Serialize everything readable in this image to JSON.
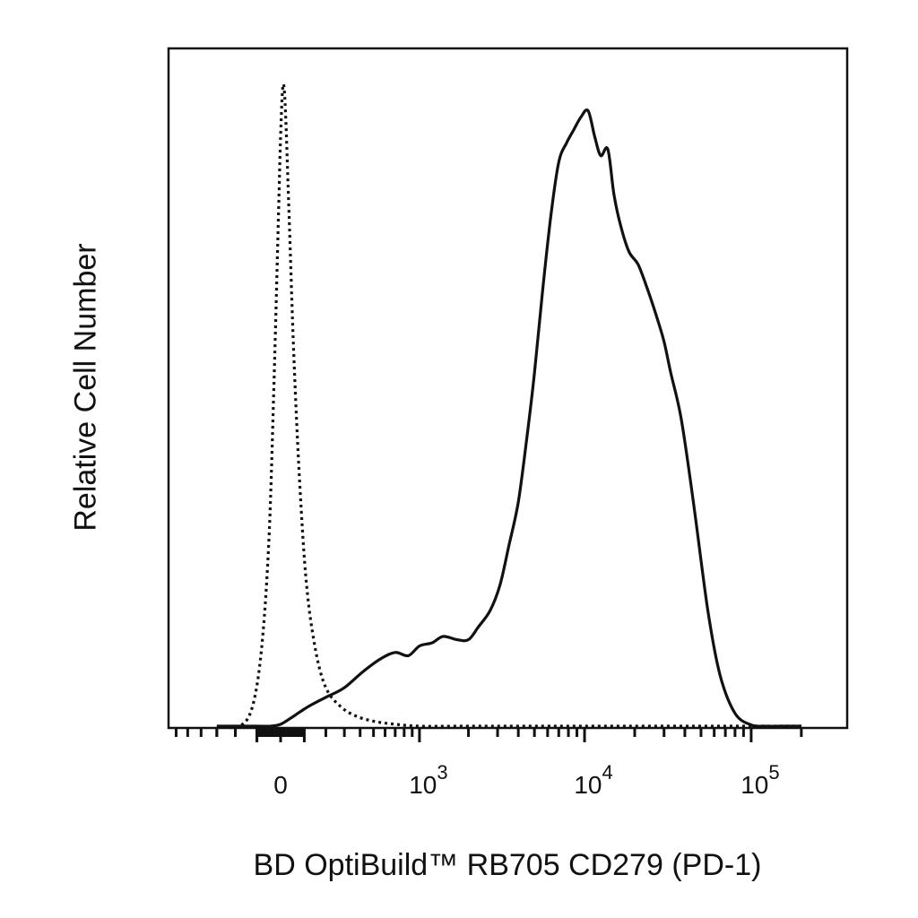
{
  "chart_data": {
    "type": "line",
    "title": "",
    "xlabel": "BD OptiBuild™ RB705 CD279 (PD-1)",
    "ylabel": "Relative Cell Number",
    "x_scale": "biexponential (linear near 0, log above)",
    "xlim": [
      -300,
      200000
    ],
    "ylim": [
      0,
      100
    ],
    "x_tick_labels": [
      {
        "value": 0,
        "base": "0",
        "exp": ""
      },
      {
        "value": 1000,
        "base": "10",
        "exp": "3"
      },
      {
        "value": 10000,
        "base": "10",
        "exp": "4"
      },
      {
        "value": 100000,
        "base": "10",
        "exp": "5"
      }
    ],
    "grid": false,
    "legend": "none",
    "series": [
      {
        "style": "dotted",
        "color": "#111111",
        "x": [
          -300,
          -180,
          -120,
          -80,
          -50,
          -30,
          -10,
          0,
          10,
          20,
          35,
          55,
          80,
          110,
          150,
          200,
          280,
          380,
          520,
          700,
          1000,
          2000,
          10000,
          100000,
          200000
        ],
        "y": [
          0,
          0,
          3,
          12,
          28,
          50,
          78,
          92,
          100,
          96,
          80,
          58,
          38,
          22,
          12,
          6,
          3,
          1.5,
          0.7,
          0.3,
          0,
          0,
          0,
          0,
          0
        ]
      },
      {
        "style": "solid",
        "color": "#111111",
        "x": [
          -300,
          -100,
          -40,
          0,
          40,
          80,
          130,
          200,
          300,
          420,
          560,
          700,
          850,
          1000,
          1200,
          1400,
          1700,
          2000,
          2300,
          2700,
          3100,
          3500,
          4000,
          4500,
          5000,
          5600,
          6300,
          7000,
          7800,
          8600,
          9500,
          10500,
          11500,
          12500,
          13800,
          15000,
          16500,
          18500,
          21000,
          24000,
          27000,
          30000,
          33000,
          38000,
          45000,
          55000,
          65000,
          80000,
          100000,
          120000,
          150000,
          200000
        ],
        "y": [
          0,
          0,
          0,
          0.3,
          1.2,
          2.2,
          3.3,
          4.5,
          6,
          8.5,
          10.5,
          11.5,
          11,
          12.5,
          13,
          14,
          13.5,
          13.5,
          15.5,
          18,
          22,
          28,
          35,
          45,
          55,
          68,
          80,
          88,
          91,
          93,
          95,
          96,
          92,
          89,
          90,
          83,
          78,
          74,
          72,
          68,
          64,
          60,
          55,
          48,
          35,
          18,
          8,
          2,
          0.2,
          0,
          0,
          0
        ]
      }
    ]
  }
}
